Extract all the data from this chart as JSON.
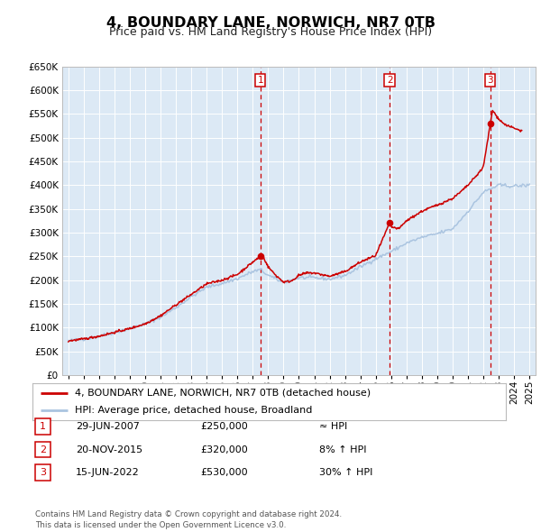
{
  "title": "4, BOUNDARY LANE, NORWICH, NR7 0TB",
  "subtitle": "Price paid vs. HM Land Registry's House Price Index (HPI)",
  "title_fontsize": 11.5,
  "subtitle_fontsize": 9,
  "bg_color": "#dce9f5",
  "grid_color": "#ffffff",
  "ylim": [
    0,
    650000
  ],
  "yticks": [
    0,
    50000,
    100000,
    150000,
    200000,
    250000,
    300000,
    350000,
    400000,
    450000,
    500000,
    550000,
    600000,
    650000
  ],
  "xlim_start": 1994.6,
  "xlim_end": 2025.4,
  "xticks": [
    1995,
    1996,
    1997,
    1998,
    1999,
    2000,
    2001,
    2002,
    2003,
    2004,
    2005,
    2006,
    2007,
    2008,
    2009,
    2010,
    2011,
    2012,
    2013,
    2014,
    2015,
    2016,
    2017,
    2018,
    2019,
    2020,
    2021,
    2022,
    2023,
    2024,
    2025
  ],
  "sale_color": "#cc0000",
  "hpi_color": "#aac4e0",
  "vline_color": "#cc0000",
  "sale_dates": [
    2007.49,
    2015.9,
    2022.46
  ],
  "sale_prices": [
    250000,
    320000,
    530000
  ],
  "sale_labels": [
    "1",
    "2",
    "3"
  ],
  "label1_date": "29-JUN-2007",
  "label1_price": "£250,000",
  "label1_rel": "≈ HPI",
  "label2_date": "20-NOV-2015",
  "label2_price": "£320,000",
  "label2_rel": "8% ↑ HPI",
  "label3_date": "15-JUN-2022",
  "label3_price": "£530,000",
  "label3_rel": "30% ↑ HPI",
  "legend_line1": "4, BOUNDARY LANE, NORWICH, NR7 0TB (detached house)",
  "legend_line2": "HPI: Average price, detached house, Broadland",
  "footnote": "Contains HM Land Registry data © Crown copyright and database right 2024.\nThis data is licensed under the Open Government Licence v3.0."
}
